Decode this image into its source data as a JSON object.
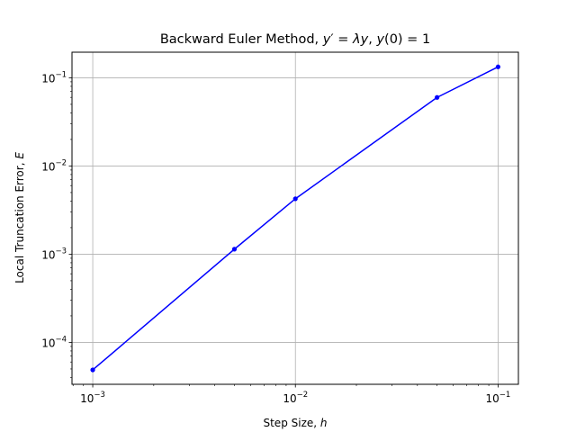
{
  "chart_data": {
    "type": "line",
    "title_prefix": "Backward Euler Method, ",
    "title_eq": [
      "y",
      "′",
      " = ",
      "λ",
      "y",
      ", ",
      "y",
      "(0) = 1"
    ],
    "xlabel_text": "Step Size, ",
    "xlabel_var": "h",
    "ylabel_text": "Local Truncation Error, ",
    "ylabel_var": "E",
    "x_scale": "log",
    "y_scale": "log",
    "xlim": [
      0.00079,
      0.126
    ],
    "ylim": [
      3.35e-05,
      0.195
    ],
    "x_ticks": [
      0.001,
      0.01,
      0.1
    ],
    "x_tick_labels": [
      "10",
      "10",
      "10"
    ],
    "x_tick_exponents": [
      "−3",
      "−2",
      "−1"
    ],
    "y_ticks": [
      0.0001,
      0.001,
      0.01,
      0.1
    ],
    "y_tick_labels": [
      "10",
      "10",
      "10",
      "10"
    ],
    "y_tick_exponents": [
      "−4",
      "−3",
      "−2",
      "−1"
    ],
    "grid": true,
    "legend": "none",
    "series": [
      {
        "x": [
          0.001,
          0.005,
          0.01,
          0.05,
          0.1
        ],
        "y": [
          4.88e-05,
          0.00114,
          0.00425,
          0.0599,
          0.133
        ],
        "color": "#0000ff",
        "marker": "circle"
      }
    ]
  }
}
